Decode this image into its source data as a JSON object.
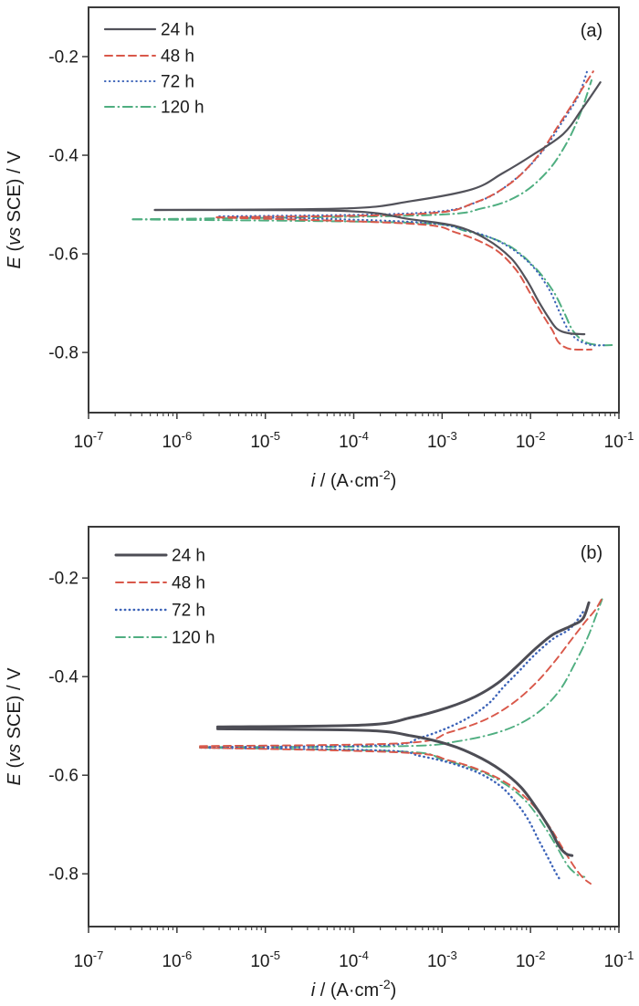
{
  "figure": {
    "background": "#ffffff",
    "axis_color": "#3a3a3a",
    "text_color": "#1b1b1b"
  },
  "chart_data": [
    {
      "type": "line",
      "panel_label": "(a)",
      "title": "",
      "xlabel": "i / (A·cm-2)",
      "ylabel": "E (vs SCE) / V",
      "xlabel_parts": [
        {
          "text": "i",
          "italic": true
        },
        {
          "text": " / (A·cm"
        },
        {
          "text": "-2",
          "sup": true
        },
        {
          "text": ")"
        }
      ],
      "ylabel_parts": [
        {
          "text": "E",
          "italic": true
        },
        {
          "text": " ("
        },
        {
          "text": "vs",
          "italic": true
        },
        {
          "text": " SCE) / V"
        }
      ],
      "x_scale": "log",
      "xlim": [
        -7,
        -1
      ],
      "x_tick_base": "10",
      "x_tick_exponents": [
        "-7",
        "-6",
        "-5",
        "-4",
        "-3",
        "-2",
        "-1"
      ],
      "x_tick_values": [
        -7,
        -6,
        -5,
        -4,
        -3,
        -2,
        -1
      ],
      "y_tick_labels": [
        "-0.2",
        "-0.4",
        "-0.6",
        "-0.8"
      ],
      "y_tick_values": [
        -0.2,
        -0.4,
        -0.6,
        -0.8
      ],
      "ylim_top": -0.1,
      "ylim_bottom": -0.922,
      "grid": false,
      "legend_position": "top-left",
      "series": [
        {
          "name": "24 h",
          "color": "#52525a",
          "style": "solid",
          "stroke_width": 2.2,
          "ecorr_V": -0.51,
          "anodic": [
            [
              -6.25,
              -0.511
            ],
            [
              -4.1,
              -0.508
            ],
            [
              -3.35,
              -0.493
            ],
            [
              -2.66,
              -0.469
            ],
            [
              -2.32,
              -0.437
            ],
            [
              -1.98,
              -0.4
            ],
            [
              -1.63,
              -0.357
            ],
            [
              -1.42,
              -0.307
            ],
            [
              -1.21,
              -0.252
            ]
          ],
          "cathodic": [
            [
              -6.25,
              -0.511
            ],
            [
              -4.1,
              -0.513
            ],
            [
              -3.35,
              -0.53
            ],
            [
              -2.84,
              -0.544
            ],
            [
              -2.5,
              -0.57
            ],
            [
              -2.22,
              -0.609
            ],
            [
              -2.04,
              -0.654
            ],
            [
              -1.91,
              -0.696
            ],
            [
              -1.8,
              -0.728
            ],
            [
              -1.7,
              -0.752
            ],
            [
              -1.57,
              -0.761
            ],
            [
              -1.39,
              -0.763
            ]
          ]
        },
        {
          "name": "48 h",
          "color": "#d9584a",
          "style": "dashed",
          "stroke_width": 2,
          "ecorr_V": -0.525,
          "anodic": [
            [
              -5.55,
              -0.526
            ],
            [
              -3.25,
              -0.519
            ],
            [
              -2.63,
              -0.496
            ],
            [
              -2.22,
              -0.456
            ],
            [
              -1.91,
              -0.4
            ],
            [
              -1.7,
              -0.344
            ],
            [
              -1.5,
              -0.289
            ],
            [
              -1.29,
              -0.23
            ]
          ],
          "cathodic": [
            [
              -5.55,
              -0.526
            ],
            [
              -3.35,
              -0.539
            ],
            [
              -2.84,
              -0.557
            ],
            [
              -2.42,
              -0.589
            ],
            [
              -2.17,
              -0.631
            ],
            [
              -2.01,
              -0.678
            ],
            [
              -1.86,
              -0.724
            ],
            [
              -1.75,
              -0.756
            ],
            [
              -1.68,
              -0.78
            ],
            [
              -1.55,
              -0.793
            ],
            [
              -1.31,
              -0.794
            ]
          ]
        },
        {
          "name": "72 h",
          "color": "#3c63b8",
          "style": "dotted",
          "stroke_width": 2.1,
          "ecorr_V": -0.525,
          "anodic": [
            [
              -5.52,
              -0.524
            ],
            [
              -3.25,
              -0.517
            ],
            [
              -2.58,
              -0.493
            ],
            [
              -2.17,
              -0.448
            ],
            [
              -1.86,
              -0.391
            ],
            [
              -1.65,
              -0.335
            ],
            [
              -1.46,
              -0.28
            ],
            [
              -1.36,
              -0.23
            ]
          ],
          "cathodic": [
            [
              -5.52,
              -0.524
            ],
            [
              -3.35,
              -0.535
            ],
            [
              -2.73,
              -0.552
            ],
            [
              -2.32,
              -0.578
            ],
            [
              -2.01,
              -0.619
            ],
            [
              -1.8,
              -0.669
            ],
            [
              -1.68,
              -0.715
            ],
            [
              -1.58,
              -0.752
            ],
            [
              -1.47,
              -0.774
            ],
            [
              -1.31,
              -0.785
            ],
            [
              -1.13,
              -0.785
            ]
          ]
        },
        {
          "name": "120 h",
          "color": "#4fae80",
          "style": "dashdot",
          "stroke_width": 2,
          "ecorr_V": -0.525,
          "anodic": [
            [
              -6.5,
              -0.53
            ],
            [
              -3.25,
              -0.522
            ],
            [
              -2.53,
              -0.507
            ],
            [
              -2.12,
              -0.48
            ],
            [
              -1.81,
              -0.433
            ],
            [
              -1.6,
              -0.378
            ],
            [
              -1.44,
              -0.317
            ],
            [
              -1.31,
              -0.248
            ]
          ],
          "cathodic": [
            [
              -6.5,
              -0.53
            ],
            [
              -3.35,
              -0.537
            ],
            [
              -2.73,
              -0.554
            ],
            [
              -2.27,
              -0.581
            ],
            [
              -1.96,
              -0.626
            ],
            [
              -1.75,
              -0.674
            ],
            [
              -1.62,
              -0.719
            ],
            [
              -1.52,
              -0.756
            ],
            [
              -1.39,
              -0.778
            ],
            [
              -1.23,
              -0.785
            ],
            [
              -1.08,
              -0.785
            ]
          ]
        }
      ]
    },
    {
      "type": "line",
      "panel_label": "(b)",
      "title": "",
      "xlabel": "i / (A·cm-2)",
      "ylabel": "E (vs SCE) / V",
      "xlabel_parts": [
        {
          "text": "i",
          "italic": true
        },
        {
          "text": " / (A·cm"
        },
        {
          "text": "-2",
          "sup": true
        },
        {
          "text": ")"
        }
      ],
      "ylabel_parts": [
        {
          "text": "E",
          "italic": true
        },
        {
          "text": " ("
        },
        {
          "text": "vs",
          "italic": true
        },
        {
          "text": " SCE) / V"
        }
      ],
      "x_scale": "log",
      "xlim": [
        -7,
        -1
      ],
      "x_tick_base": "10",
      "x_tick_exponents": [
        "-7",
        "-6",
        "-5",
        "-4",
        "-3",
        "-2",
        "-1"
      ],
      "x_tick_values": [
        -7,
        -6,
        -5,
        -4,
        -3,
        -2,
        -1
      ],
      "y_tick_labels": [
        "-0.2",
        "-0.4",
        "-0.6",
        "-0.8"
      ],
      "y_tick_values": [
        -0.2,
        -0.4,
        -0.6,
        -0.8
      ],
      "ylim_top": -0.096,
      "ylim_bottom": -0.907,
      "grid": false,
      "legend_position": "top-left",
      "series": [
        {
          "name": "24 h",
          "color": "#4d4d55",
          "style": "solid",
          "stroke_width": 3,
          "ecorr_V": -0.5,
          "anodic": [
            [
              -5.54,
              -0.502
            ],
            [
              -3.87,
              -0.498
            ],
            [
              -3.35,
              -0.483
            ],
            [
              -2.94,
              -0.463
            ],
            [
              -2.63,
              -0.441
            ],
            [
              -2.37,
              -0.413
            ],
            [
              -2.16,
              -0.38
            ],
            [
              -1.96,
              -0.346
            ],
            [
              -1.75,
              -0.315
            ],
            [
              -1.55,
              -0.298
            ],
            [
              -1.41,
              -0.283
            ],
            [
              -1.34,
              -0.25
            ]
          ],
          "cathodic": [
            [
              -5.54,
              -0.506
            ],
            [
              -3.87,
              -0.509
            ],
            [
              -3.35,
              -0.52
            ],
            [
              -2.94,
              -0.537
            ],
            [
              -2.63,
              -0.559
            ],
            [
              -2.34,
              -0.589
            ],
            [
              -2.11,
              -0.624
            ],
            [
              -1.93,
              -0.667
            ],
            [
              -1.78,
              -0.709
            ],
            [
              -1.68,
              -0.743
            ],
            [
              -1.6,
              -0.759
            ],
            [
              -1.53,
              -0.763
            ]
          ]
        },
        {
          "name": "48 h",
          "color": "#d9584a",
          "style": "dashed",
          "stroke_width": 1.9,
          "ecorr_V": -0.535,
          "anodic": [
            [
              -5.74,
              -0.541
            ],
            [
              -3.44,
              -0.535
            ],
            [
              -2.92,
              -0.513
            ],
            [
              -2.51,
              -0.487
            ],
            [
              -2.2,
              -0.454
            ],
            [
              -1.94,
              -0.413
            ],
            [
              -1.73,
              -0.37
            ],
            [
              -1.55,
              -0.328
            ],
            [
              -1.39,
              -0.291
            ],
            [
              -1.27,
              -0.265
            ],
            [
              -1.19,
              -0.241
            ]
          ],
          "cathodic": [
            [
              -5.74,
              -0.544
            ],
            [
              -3.44,
              -0.554
            ],
            [
              -2.92,
              -0.57
            ],
            [
              -2.51,
              -0.594
            ],
            [
              -2.2,
              -0.624
            ],
            [
              -1.97,
              -0.661
            ],
            [
              -1.78,
              -0.706
            ],
            [
              -1.63,
              -0.75
            ],
            [
              -1.5,
              -0.787
            ],
            [
              -1.4,
              -0.809
            ],
            [
              -1.32,
              -0.82
            ]
          ]
        },
        {
          "name": "72 h",
          "color": "#3c63b8",
          "style": "dotted",
          "stroke_width": 2.4,
          "ecorr_V": -0.54,
          "anodic": [
            [
              -5.73,
              -0.543
            ],
            [
              -3.66,
              -0.539
            ],
            [
              -3.25,
              -0.524
            ],
            [
              -2.94,
              -0.504
            ],
            [
              -2.68,
              -0.481
            ],
            [
              -2.47,
              -0.454
            ],
            [
              -2.3,
              -0.42
            ],
            [
              -2.13,
              -0.389
            ],
            [
              -1.96,
              -0.357
            ],
            [
              -1.75,
              -0.324
            ],
            [
              -1.55,
              -0.302
            ],
            [
              -1.39,
              -0.265
            ]
          ],
          "cathodic": [
            [
              -5.73,
              -0.544
            ],
            [
              -3.66,
              -0.55
            ],
            [
              -3.25,
              -0.561
            ],
            [
              -2.89,
              -0.576
            ],
            [
              -2.58,
              -0.596
            ],
            [
              -2.34,
              -0.622
            ],
            [
              -2.17,
              -0.654
            ],
            [
              -2.03,
              -0.689
            ],
            [
              -1.91,
              -0.731
            ],
            [
              -1.8,
              -0.768
            ],
            [
              -1.72,
              -0.796
            ],
            [
              -1.67,
              -0.811
            ]
          ]
        },
        {
          "name": "120 h",
          "color": "#4fae80",
          "style": "dashdot",
          "stroke_width": 1.9,
          "ecorr_V": -0.535,
          "anodic": [
            [
              -5.74,
              -0.543
            ],
            [
              -3.44,
              -0.541
            ],
            [
              -2.82,
              -0.531
            ],
            [
              -2.3,
              -0.509
            ],
            [
              -1.94,
              -0.476
            ],
            [
              -1.68,
              -0.43
            ],
            [
              -1.5,
              -0.374
            ],
            [
              -1.35,
              -0.319
            ],
            [
              -1.25,
              -0.272
            ],
            [
              -1.19,
              -0.243
            ]
          ],
          "cathodic": [
            [
              -5.74,
              -0.544
            ],
            [
              -3.44,
              -0.552
            ],
            [
              -2.99,
              -0.569
            ],
            [
              -2.58,
              -0.591
            ],
            [
              -2.27,
              -0.62
            ],
            [
              -2.03,
              -0.657
            ],
            [
              -1.85,
              -0.702
            ],
            [
              -1.7,
              -0.746
            ],
            [
              -1.58,
              -0.783
            ],
            [
              -1.47,
              -0.802
            ],
            [
              -1.39,
              -0.806
            ]
          ]
        }
      ]
    }
  ]
}
